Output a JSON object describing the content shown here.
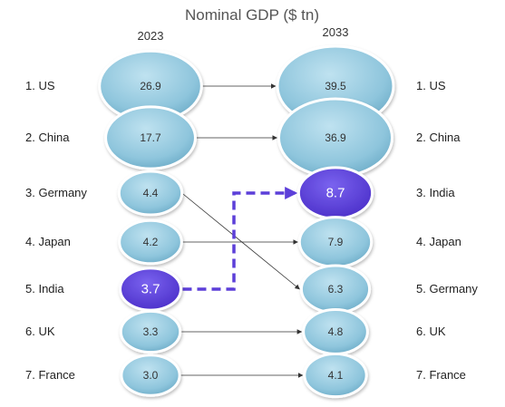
{
  "chart_data": {
    "type": "bubble-rank",
    "title": "Nominal GDP ($ tn)",
    "years": [
      "2023",
      "2033"
    ],
    "colors": {
      "bubble": "#8ec5dc",
      "bubble_stroke": "#ffffff",
      "highlight": "#5c3fd9",
      "arrow": "#333333"
    },
    "series": [
      {
        "name": "2023",
        "ranks": [
          {
            "label": "1. US",
            "country": "US",
            "value": 26.9
          },
          {
            "label": "2. China",
            "country": "China",
            "value": 17.7
          },
          {
            "label": "3. Germany",
            "country": "Germany",
            "value": 4.4
          },
          {
            "label": "4. Japan",
            "country": "Japan",
            "value": 4.2
          },
          {
            "label": "5. India",
            "country": "India",
            "value": 3.7
          },
          {
            "label": "6. UK",
            "country": "UK",
            "value": 3.3
          },
          {
            "label": "7. France",
            "country": "France",
            "value": 3.0
          }
        ]
      },
      {
        "name": "2033",
        "ranks": [
          {
            "label": "1. US",
            "country": "US",
            "value": 39.5
          },
          {
            "label": "2. China",
            "country": "China",
            "value": 36.9
          },
          {
            "label": "3. India",
            "country": "India",
            "value": 8.7
          },
          {
            "label": "4. Japan",
            "country": "Japan",
            "value": 7.9
          },
          {
            "label": "5. Germany",
            "country": "Germany",
            "value": 6.3
          },
          {
            "label": "6. UK",
            "country": "UK",
            "value": 4.8
          },
          {
            "label": "7. France",
            "country": "France",
            "value": 4.1
          }
        ]
      }
    ],
    "highlight_country": "India"
  }
}
